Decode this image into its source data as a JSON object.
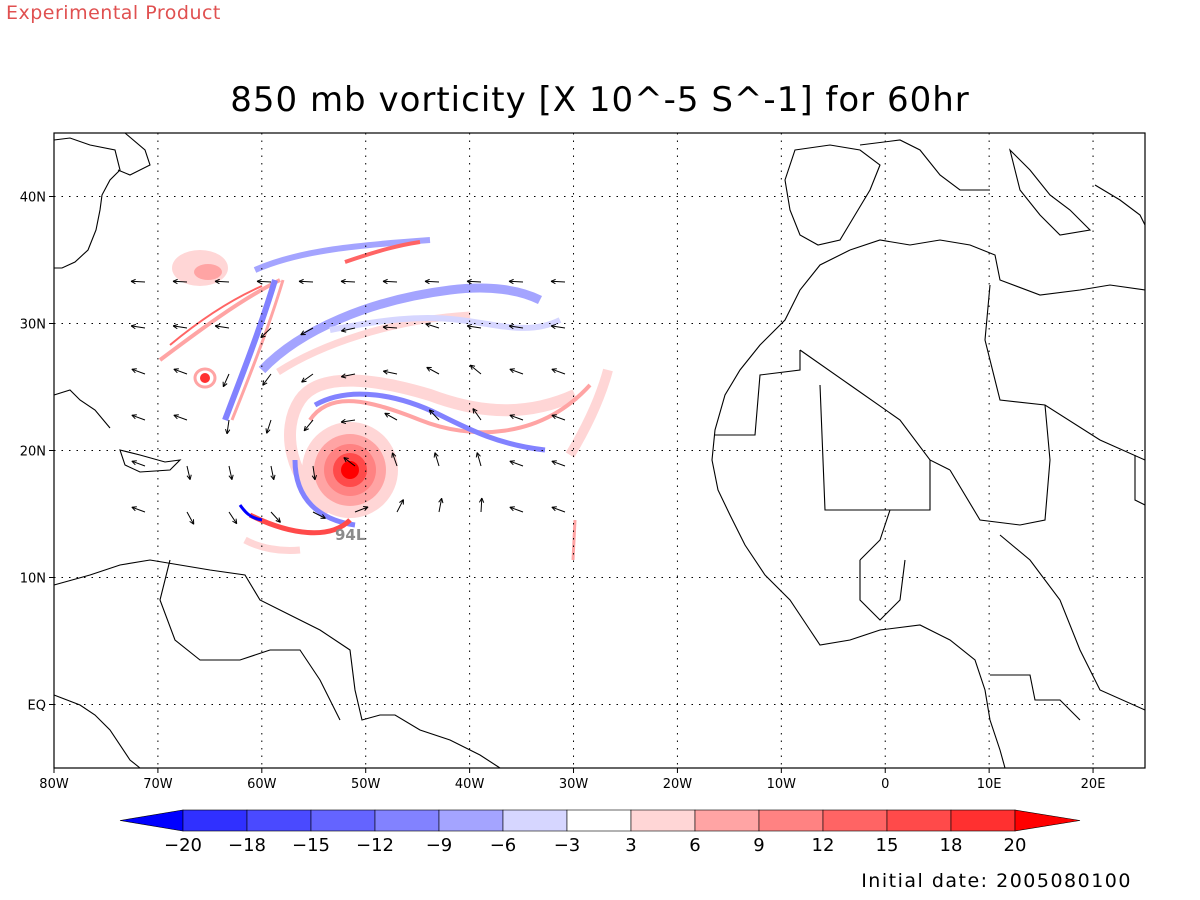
{
  "header": {
    "tag": "Experimental Product",
    "title": "850 mb vorticity [X 10^-5 S^-1] for 60hr"
  },
  "footer": {
    "initial_date": "Initial date: 2005080100"
  },
  "map": {
    "lon_range": [
      -80,
      25
    ],
    "lat_range": [
      -5,
      45
    ],
    "lat_labels": [
      {
        "lat": 40,
        "label": "40N"
      },
      {
        "lat": 30,
        "label": "30N"
      },
      {
        "lat": 20,
        "label": "20N"
      },
      {
        "lat": 10,
        "label": "10N"
      },
      {
        "lat": 0,
        "label": "EQ"
      }
    ],
    "lon_labels": [
      {
        "lon": -80,
        "label": "80W"
      },
      {
        "lon": -70,
        "label": "70W"
      },
      {
        "lon": -60,
        "label": "60W"
      },
      {
        "lon": -50,
        "label": "50W"
      },
      {
        "lon": -40,
        "label": "40W"
      },
      {
        "lon": -30,
        "label": "30W"
      },
      {
        "lon": -20,
        "label": "20W"
      },
      {
        "lon": -10,
        "label": "10W"
      },
      {
        "lon": 0,
        "label": "0"
      },
      {
        "lon": 10,
        "label": "10E"
      },
      {
        "lon": 20,
        "label": "20E"
      }
    ],
    "storm_label": "94L",
    "colors": {
      "storm_label": "#8c8c8c",
      "coast": "#000000",
      "grid": "#000000"
    }
  },
  "colorbar": {
    "labels": [
      "-20",
      "-18",
      "-15",
      "-12",
      "-9",
      "-6",
      "-3",
      "3",
      "6",
      "9",
      "12",
      "15",
      "18",
      "20"
    ],
    "colors": [
      "#3030ff",
      "#4a4aff",
      "#6464ff",
      "#8282ff",
      "#a4a4ff",
      "#d6d6ff",
      "#ffffff",
      "#ffd6d6",
      "#ffa4a4",
      "#ff8282",
      "#ff6464",
      "#ff4a4a",
      "#ff3030"
    ],
    "under_color": "#0000ff",
    "over_color": "#ff0000"
  }
}
